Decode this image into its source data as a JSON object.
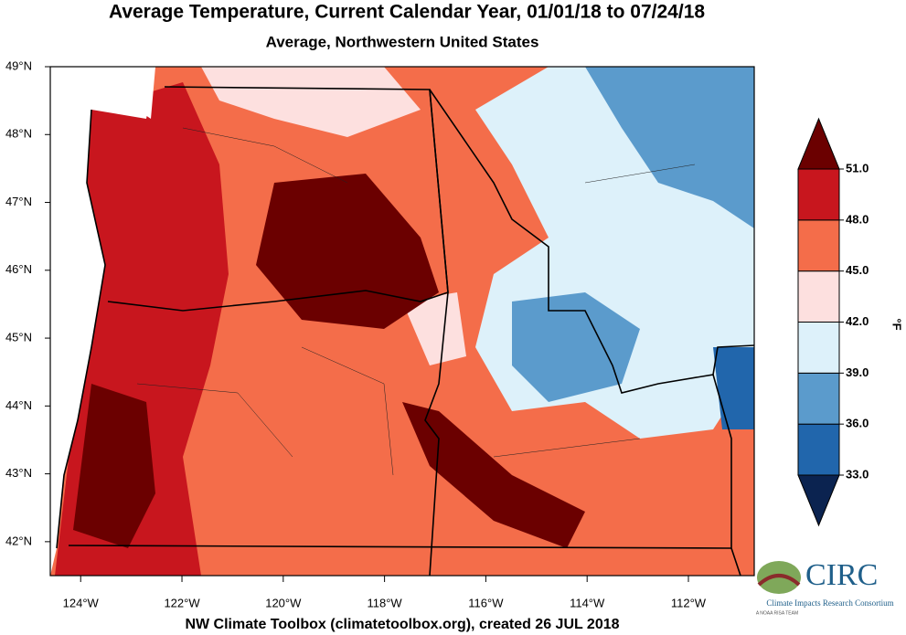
{
  "header": {
    "title": "Average Temperature, Current Calendar Year, 01/01/18 to 07/24/18",
    "subtitle": "Average, Northwestern United States"
  },
  "map": {
    "xlim": [
      -124.6,
      -110.7
    ],
    "ylim": [
      41.5,
      49
    ],
    "xticks": [
      {
        "value": -124,
        "label": "124°W"
      },
      {
        "value": -122,
        "label": "122°W"
      },
      {
        "value": -120,
        "label": "120°W"
      },
      {
        "value": -118,
        "label": "118°W"
      },
      {
        "value": -116,
        "label": "116°W"
      },
      {
        "value": -114,
        "label": "114°W"
      },
      {
        "value": -112,
        "label": "112°W"
      }
    ],
    "yticks": [
      {
        "value": 49,
        "label": "49°N"
      },
      {
        "value": 48,
        "label": "48°N"
      },
      {
        "value": 47,
        "label": "47°N"
      },
      {
        "value": 46,
        "label": "46°N"
      },
      {
        "value": 45,
        "label": "45°N"
      },
      {
        "value": 44,
        "label": "44°N"
      },
      {
        "value": 43,
        "label": "43°N"
      },
      {
        "value": 42,
        "label": "42°N"
      }
    ]
  },
  "colorbar": {
    "unit": "°F",
    "ticks": [
      {
        "value": 33,
        "label": "33.0"
      },
      {
        "value": 36,
        "label": "36.0"
      },
      {
        "value": 39,
        "label": "39.0"
      },
      {
        "value": 42,
        "label": "42.0"
      },
      {
        "value": 45,
        "label": "45.0"
      },
      {
        "value": 48,
        "label": "48.0"
      },
      {
        "value": 51,
        "label": "51.0"
      }
    ],
    "colors": [
      "#0b2350",
      "#2166ac",
      "#5b9bcc",
      "#ddf1fa",
      "#fde0df",
      "#f46d4a",
      "#c8161e",
      "#6b0000"
    ]
  },
  "footer": {
    "credit": "NW Climate Toolbox (climatetoolbox.org), created 26 JUL 2018"
  },
  "logo": {
    "name": "CIRC",
    "full_name": "Climate Impacts Research Consortium",
    "tagline": "A NOAA RISA TEAM"
  }
}
